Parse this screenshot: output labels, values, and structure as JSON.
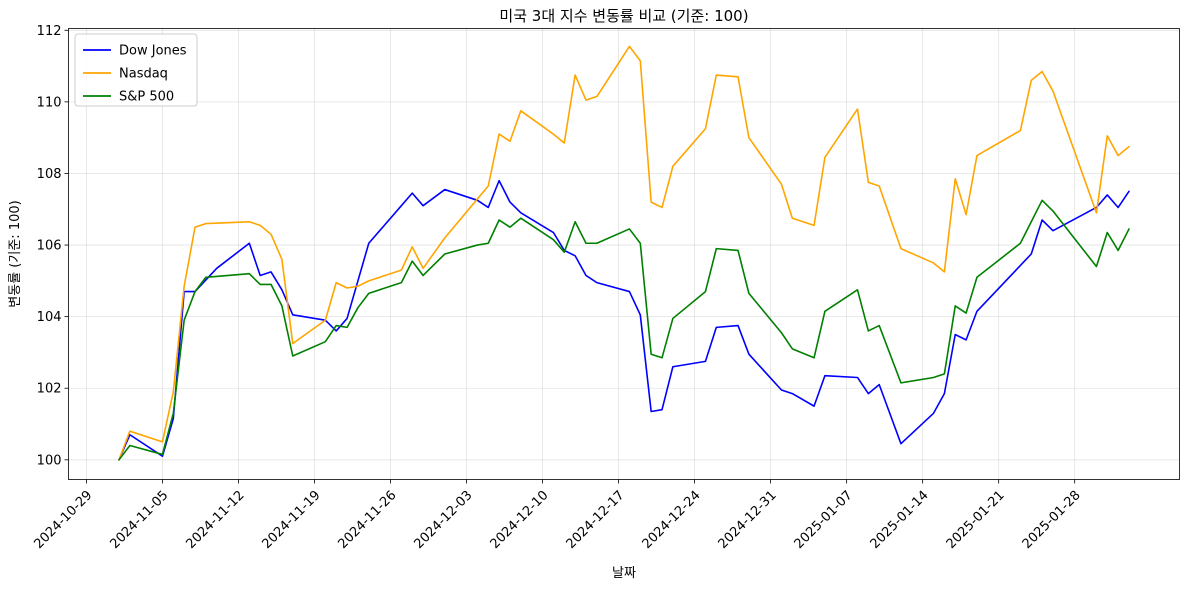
{
  "chart_data": {
    "type": "line",
    "title": "미국 3대 지수 변동률 비교 (기준: 100)",
    "xlabel": "날짜",
    "ylabel": "변동률 (기준: 100)",
    "ylim": [
      99.45,
      112.05
    ],
    "y_ticks": [
      100,
      102,
      104,
      106,
      108,
      110,
      112
    ],
    "x_ticks": [
      "2024-10-29",
      "2024-11-05",
      "2024-11-12",
      "2024-11-19",
      "2024-11-26",
      "2024-12-03",
      "2024-12-10",
      "2024-12-17",
      "2024-12-24",
      "2024-12-31",
      "2025-01-07",
      "2025-01-14",
      "2025-01-21",
      "2025-01-28"
    ],
    "grid": true,
    "legend_position": "upper-left",
    "series": [
      {
        "name": "Dow Jones",
        "color": "#0000ff",
        "points": [
          [
            "2024-11-01",
            100.0
          ],
          [
            "2024-11-02",
            100.7
          ],
          [
            "2024-11-05",
            100.1
          ],
          [
            "2024-11-06",
            101.15
          ],
          [
            "2024-11-07",
            104.7
          ],
          [
            "2024-11-08",
            104.7
          ],
          [
            "2024-11-10",
            105.35
          ],
          [
            "2024-11-13",
            106.05
          ],
          [
            "2024-11-14",
            105.15
          ],
          [
            "2024-11-15",
            105.25
          ],
          [
            "2024-11-16",
            104.75
          ],
          [
            "2024-11-17",
            104.05
          ],
          [
            "2024-11-20",
            103.9
          ],
          [
            "2024-11-21",
            103.6
          ],
          [
            "2024-11-22",
            103.95
          ],
          [
            "2024-11-24",
            106.05
          ],
          [
            "2024-11-27",
            107.1
          ],
          [
            "2024-11-28",
            107.45
          ],
          [
            "2024-11-29",
            107.1
          ],
          [
            "2024-12-01",
            107.55
          ],
          [
            "2024-12-04",
            107.25
          ],
          [
            "2024-12-05",
            107.05
          ],
          [
            "2024-12-06",
            107.8
          ],
          [
            "2024-12-07",
            107.2
          ],
          [
            "2024-12-08",
            106.9
          ],
          [
            "2024-12-11",
            106.35
          ],
          [
            "2024-12-12",
            105.85
          ],
          [
            "2024-12-13",
            105.7
          ],
          [
            "2024-12-14",
            105.15
          ],
          [
            "2024-12-15",
            104.95
          ],
          [
            "2024-12-18",
            104.7
          ],
          [
            "2024-12-19",
            104.05
          ],
          [
            "2024-12-20",
            101.35
          ],
          [
            "2024-12-21",
            101.4
          ],
          [
            "2024-12-22",
            102.6
          ],
          [
            "2024-12-25",
            102.75
          ],
          [
            "2024-12-26",
            103.7
          ],
          [
            "2024-12-28",
            103.75
          ],
          [
            "2024-12-29",
            102.95
          ],
          [
            "2025-01-01",
            101.95
          ],
          [
            "2025-01-02",
            101.85
          ],
          [
            "2025-01-04",
            101.5
          ],
          [
            "2025-01-05",
            102.35
          ],
          [
            "2025-01-08",
            102.3
          ],
          [
            "2025-01-09",
            101.85
          ],
          [
            "2025-01-10",
            102.1
          ],
          [
            "2025-01-12",
            100.45
          ],
          [
            "2025-01-15",
            101.3
          ],
          [
            "2025-01-16",
            101.85
          ],
          [
            "2025-01-17",
            103.5
          ],
          [
            "2025-01-18",
            103.35
          ],
          [
            "2025-01-19",
            104.15
          ],
          [
            "2025-01-24",
            105.75
          ],
          [
            "2025-01-25",
            106.7
          ],
          [
            "2025-01-26",
            106.4
          ],
          [
            "2025-01-30",
            107.05
          ],
          [
            "2025-01-31",
            107.4
          ],
          [
            "2025-02-01",
            107.05
          ],
          [
            "2025-02-02",
            107.5
          ]
        ]
      },
      {
        "name": "Nasdaq",
        "color": "#ffa500",
        "points": [
          [
            "2024-11-01",
            100.0
          ],
          [
            "2024-11-02",
            100.8
          ],
          [
            "2024-11-05",
            100.5
          ],
          [
            "2024-11-06",
            101.9
          ],
          [
            "2024-11-07",
            104.85
          ],
          [
            "2024-11-08",
            106.5
          ],
          [
            "2024-11-09",
            106.6
          ],
          [
            "2024-11-13",
            106.65
          ],
          [
            "2024-11-14",
            106.55
          ],
          [
            "2024-11-15",
            106.3
          ],
          [
            "2024-11-16",
            105.6
          ],
          [
            "2024-11-17",
            103.25
          ],
          [
            "2024-11-20",
            103.9
          ],
          [
            "2024-11-21",
            104.95
          ],
          [
            "2024-11-22",
            104.8
          ],
          [
            "2024-11-23",
            104.85
          ],
          [
            "2024-11-24",
            105.0
          ],
          [
            "2024-11-27",
            105.3
          ],
          [
            "2024-11-28",
            105.95
          ],
          [
            "2024-11-29",
            105.35
          ],
          [
            "2024-12-01",
            106.2
          ],
          [
            "2024-12-05",
            107.65
          ],
          [
            "2024-12-06",
            109.1
          ],
          [
            "2024-12-07",
            108.9
          ],
          [
            "2024-12-08",
            109.75
          ],
          [
            "2024-12-11",
            109.1
          ],
          [
            "2024-12-12",
            108.85
          ],
          [
            "2024-12-13",
            110.75
          ],
          [
            "2024-12-14",
            110.05
          ],
          [
            "2024-12-15",
            110.15
          ],
          [
            "2024-12-18",
            111.55
          ],
          [
            "2024-12-19",
            111.15
          ],
          [
            "2024-12-20",
            107.2
          ],
          [
            "2024-12-21",
            107.05
          ],
          [
            "2024-12-22",
            108.2
          ],
          [
            "2024-12-25",
            109.25
          ],
          [
            "2024-12-26",
            110.75
          ],
          [
            "2024-12-28",
            110.7
          ],
          [
            "2024-12-29",
            109.0
          ],
          [
            "2025-01-01",
            107.7
          ],
          [
            "2025-01-02",
            106.75
          ],
          [
            "2025-01-04",
            106.55
          ],
          [
            "2025-01-05",
            108.45
          ],
          [
            "2025-01-08",
            109.8
          ],
          [
            "2025-01-09",
            107.75
          ],
          [
            "2025-01-10",
            107.65
          ],
          [
            "2025-01-12",
            105.9
          ],
          [
            "2025-01-15",
            105.5
          ],
          [
            "2025-01-16",
            105.25
          ],
          [
            "2025-01-17",
            107.85
          ],
          [
            "2025-01-18",
            106.85
          ],
          [
            "2025-01-19",
            108.5
          ],
          [
            "2025-01-23",
            109.2
          ],
          [
            "2025-01-24",
            110.6
          ],
          [
            "2025-01-25",
            110.85
          ],
          [
            "2025-01-26",
            110.3
          ],
          [
            "2025-01-30",
            106.9
          ],
          [
            "2025-01-31",
            109.05
          ],
          [
            "2025-02-01",
            108.5
          ],
          [
            "2025-02-02",
            108.75
          ]
        ]
      },
      {
        "name": "S&P 500",
        "color": "#008000",
        "points": [
          [
            "2024-11-01",
            100.0
          ],
          [
            "2024-11-02",
            100.4
          ],
          [
            "2024-11-05",
            100.15
          ],
          [
            "2024-11-06",
            101.3
          ],
          [
            "2024-11-07",
            103.9
          ],
          [
            "2024-11-08",
            104.7
          ],
          [
            "2024-11-09",
            105.1
          ],
          [
            "2024-11-13",
            105.2
          ],
          [
            "2024-11-14",
            104.9
          ],
          [
            "2024-11-15",
            104.9
          ],
          [
            "2024-11-16",
            104.3
          ],
          [
            "2024-11-17",
            102.9
          ],
          [
            "2024-11-20",
            103.3
          ],
          [
            "2024-11-21",
            103.75
          ],
          [
            "2024-11-22",
            103.7
          ],
          [
            "2024-11-23",
            104.25
          ],
          [
            "2024-11-24",
            104.65
          ],
          [
            "2024-11-27",
            104.95
          ],
          [
            "2024-11-28",
            105.55
          ],
          [
            "2024-11-29",
            105.15
          ],
          [
            "2024-12-01",
            105.75
          ],
          [
            "2024-12-04",
            106.0
          ],
          [
            "2024-12-05",
            106.05
          ],
          [
            "2024-12-06",
            106.7
          ],
          [
            "2024-12-07",
            106.5
          ],
          [
            "2024-12-08",
            106.75
          ],
          [
            "2024-12-11",
            106.15
          ],
          [
            "2024-12-12",
            105.8
          ],
          [
            "2024-12-13",
            106.65
          ],
          [
            "2024-12-14",
            106.05
          ],
          [
            "2024-12-15",
            106.05
          ],
          [
            "2024-12-18",
            106.45
          ],
          [
            "2024-12-19",
            106.05
          ],
          [
            "2024-12-20",
            102.95
          ],
          [
            "2024-12-21",
            102.85
          ],
          [
            "2024-12-22",
            103.95
          ],
          [
            "2024-12-25",
            104.7
          ],
          [
            "2024-12-26",
            105.9
          ],
          [
            "2024-12-28",
            105.85
          ],
          [
            "2024-12-29",
            104.65
          ],
          [
            "2025-01-01",
            103.55
          ],
          [
            "2025-01-02",
            103.1
          ],
          [
            "2025-01-04",
            102.85
          ],
          [
            "2025-01-05",
            104.15
          ],
          [
            "2025-01-08",
            104.75
          ],
          [
            "2025-01-09",
            103.6
          ],
          [
            "2025-01-10",
            103.75
          ],
          [
            "2025-01-12",
            102.15
          ],
          [
            "2025-01-15",
            102.3
          ],
          [
            "2025-01-16",
            102.4
          ],
          [
            "2025-01-17",
            104.3
          ],
          [
            "2025-01-18",
            104.1
          ],
          [
            "2025-01-19",
            105.1
          ],
          [
            "2025-01-23",
            106.05
          ],
          [
            "2025-01-24",
            106.65
          ],
          [
            "2025-01-25",
            107.25
          ],
          [
            "2025-01-26",
            106.95
          ],
          [
            "2025-01-30",
            105.4
          ],
          [
            "2025-01-31",
            106.35
          ],
          [
            "2025-02-01",
            105.85
          ],
          [
            "2025-02-02",
            106.45
          ]
        ]
      }
    ]
  }
}
